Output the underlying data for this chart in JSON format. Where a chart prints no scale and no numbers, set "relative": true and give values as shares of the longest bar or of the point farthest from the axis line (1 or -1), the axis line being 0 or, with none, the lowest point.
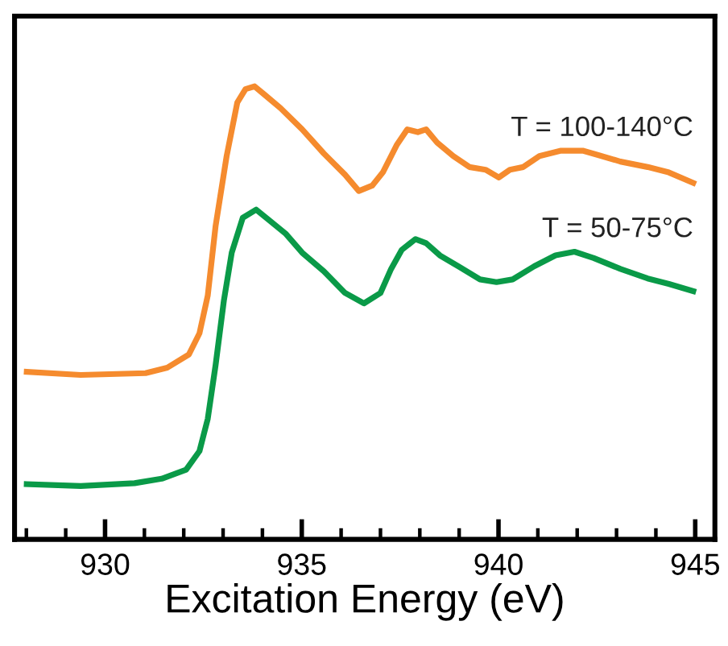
{
  "chart_data": {
    "type": "line",
    "xlabel": "Excitation Energy (eV)",
    "relative": true,
    "grid": false,
    "legend": false,
    "tick_labels": "x",
    "line_style": "solid",
    "marker": "none",
    "xlim": [
      927.7,
      945.5
    ],
    "xticks": [
      {
        "value": 928,
        "label": null
      },
      {
        "value": 929,
        "label": null
      },
      930,
      {
        "value": 931,
        "label": null
      },
      {
        "value": 932,
        "label": null
      },
      {
        "value": 933,
        "label": null
      },
      {
        "value": 934,
        "label": null
      },
      935,
      {
        "value": 936,
        "label": null
      },
      {
        "value": 937,
        "label": null
      },
      {
        "value": 938,
        "label": null
      },
      {
        "value": 939,
        "label": null
      },
      940,
      {
        "value": 941,
        "label": null
      },
      {
        "value": 942,
        "label": null
      },
      {
        "value": 943,
        "label": null
      },
      {
        "value": 944,
        "label": null
      },
      945
    ],
    "series": [
      {
        "name": "T = 100-140°C",
        "color": "#f58b2e",
        "x": [
          928.01,
          929.38,
          931.03,
          931.58,
          932.13,
          932.4,
          932.61,
          932.81,
          933.09,
          933.36,
          933.57,
          933.8,
          934.05,
          934.46,
          935.01,
          935.56,
          936.1,
          936.45,
          936.79,
          937.06,
          937.41,
          937.68,
          937.95,
          938.16,
          938.44,
          938.85,
          939.26,
          939.67,
          940.01,
          940.29,
          940.63,
          941.04,
          941.59,
          942.14,
          942.55,
          943.1,
          943.79,
          944.33,
          944.95
        ],
        "values": [
          0.37,
          0.363,
          0.367,
          0.379,
          0.408,
          0.455,
          0.538,
          0.692,
          0.846,
          0.964,
          0.994,
          1,
          0.982,
          0.952,
          0.905,
          0.852,
          0.805,
          0.769,
          0.781,
          0.81,
          0.87,
          0.905,
          0.899,
          0.905,
          0.876,
          0.846,
          0.822,
          0.816,
          0.799,
          0.816,
          0.822,
          0.846,
          0.858,
          0.858,
          0.848,
          0.834,
          0.822,
          0.81,
          0.787
        ]
      },
      {
        "name": "T = 50-75°C",
        "color": "#0a9a48",
        "x": [
          928.01,
          929.38,
          930.75,
          931.44,
          932.06,
          932.4,
          932.61,
          932.81,
          933.02,
          933.22,
          933.5,
          933.84,
          934.18,
          934.6,
          935.01,
          935.56,
          936.1,
          936.58,
          937.0,
          937.27,
          937.54,
          937.89,
          938.16,
          938.51,
          938.98,
          939.53,
          939.95,
          940.36,
          940.91,
          941.45,
          941.93,
          942.42,
          943.1,
          943.79,
          944.33,
          944.95
        ],
        "values": [
          0.122,
          0.118,
          0.124,
          0.134,
          0.154,
          0.195,
          0.266,
          0.385,
          0.527,
          0.633,
          0.71,
          0.728,
          0.704,
          0.674,
          0.633,
          0.592,
          0.544,
          0.521,
          0.544,
          0.597,
          0.639,
          0.663,
          0.654,
          0.627,
          0.603,
          0.574,
          0.568,
          0.574,
          0.603,
          0.627,
          0.635,
          0.621,
          0.597,
          0.576,
          0.564,
          0.548
        ]
      }
    ]
  }
}
